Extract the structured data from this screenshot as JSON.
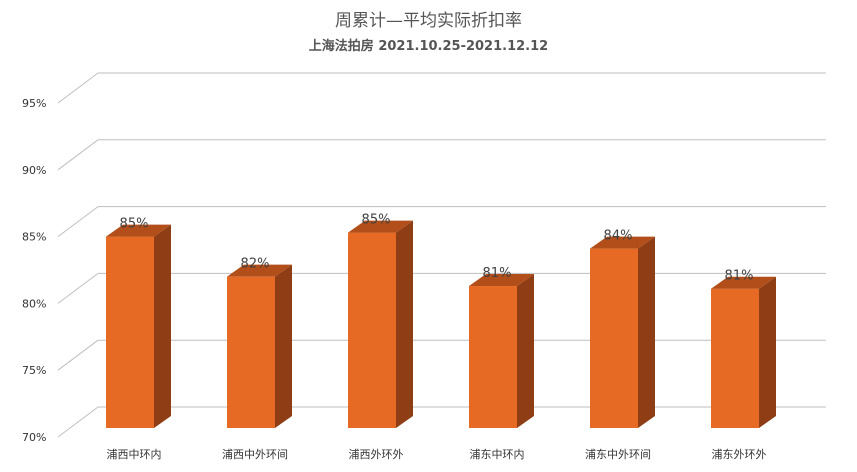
{
  "chart_data": {
    "type": "bar",
    "title": "周累计—平均实际折扣率",
    "subtitle": "上海法拍房  2021.10.25-2021.12.12",
    "categories": [
      "浦西中环内",
      "浦西中外环间",
      "浦西外环外",
      "浦东中环内",
      "浦东中外环间",
      "浦东外环外"
    ],
    "values": [
      85,
      82,
      85.3,
      81.3,
      84.1,
      81.1
    ],
    "data_labels": [
      "85%",
      "82%",
      "85%",
      "81%",
      "84%",
      "81%"
    ],
    "yticks": [
      "70%",
      "75%",
      "80%",
      "85%",
      "90%",
      "95%"
    ],
    "ylim": [
      70,
      95
    ],
    "grid": true,
    "three_d": true,
    "colors": {
      "bar_front": "#E76A24",
      "bar_side": "#8E3D14",
      "bar_top": "#B14E1A",
      "grid": "#BFBFBF"
    }
  }
}
